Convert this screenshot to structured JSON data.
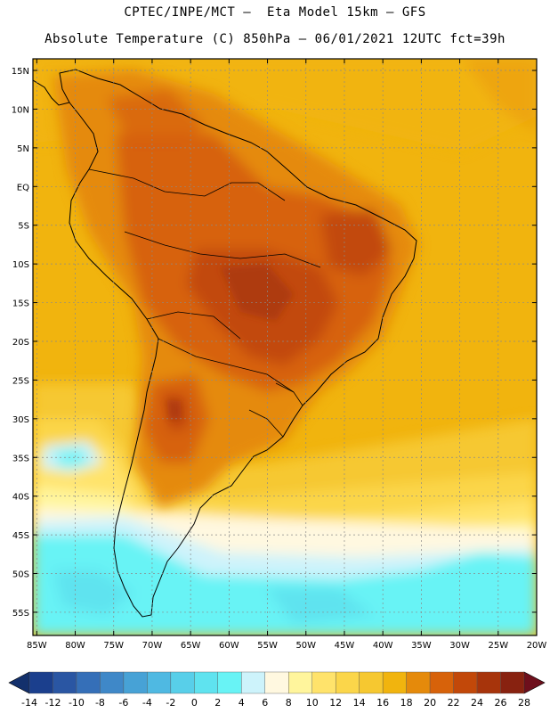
{
  "header": {
    "line1": "CPTEC/INPE/MCT –  Eta Model 15km – GFS",
    "line2": "Absolute Temperature (C) 850hPa – 06/01/2021 12UTC fct=39h"
  },
  "map": {
    "lat_labels": [
      "15N",
      "10N",
      "5N",
      "EQ",
      "5S",
      "10S",
      "15S",
      "20S",
      "25S",
      "30S",
      "35S",
      "40S",
      "45S",
      "50S",
      "55S"
    ],
    "lat_values": [
      15,
      10,
      5,
      0,
      -5,
      -10,
      -15,
      -20,
      -25,
      -30,
      -35,
      -40,
      -45,
      -50,
      -55
    ],
    "lon_labels": [
      "85W",
      "80W",
      "75W",
      "70W",
      "65W",
      "60W",
      "55W",
      "50W",
      "45W",
      "40W",
      "35W",
      "30W",
      "25W",
      "20W"
    ],
    "lon_values": [
      -85,
      -80,
      -75,
      -70,
      -65,
      -60,
      -55,
      -50,
      -45,
      -40,
      -35,
      -30,
      -25,
      -20
    ],
    "extent": {
      "lon_min": -85.5,
      "lon_max": -20,
      "lat_min": -58,
      "lat_max": 16.5
    },
    "ocean_color": "#f1b40e",
    "coast_color": "#000000"
  },
  "colorbar": {
    "labels": [
      "-14",
      "-12",
      "-10",
      "-8",
      "-6",
      "-4",
      "-2",
      "0",
      "2",
      "4",
      "6",
      "8",
      "10",
      "12",
      "14",
      "16",
      "18",
      "20",
      "22",
      "24",
      "26",
      "28"
    ],
    "colors": [
      "#1b3f8d",
      "#2a56a3",
      "#356fb8",
      "#3f88c8",
      "#47a2d6",
      "#4fb9e2",
      "#58cfe9",
      "#5fe3ef",
      "#68f3f5",
      "#cdf3fb",
      "#fff8e0",
      "#fff59c",
      "#ffe36b",
      "#fbd64a",
      "#f6c830",
      "#f1b40e",
      "#e58a0b",
      "#d7620a",
      "#c24809",
      "#a7340b",
      "#882210"
    ],
    "left_arrow_color": "#13306c",
    "right_arrow_color": "#6e0f1c"
  }
}
